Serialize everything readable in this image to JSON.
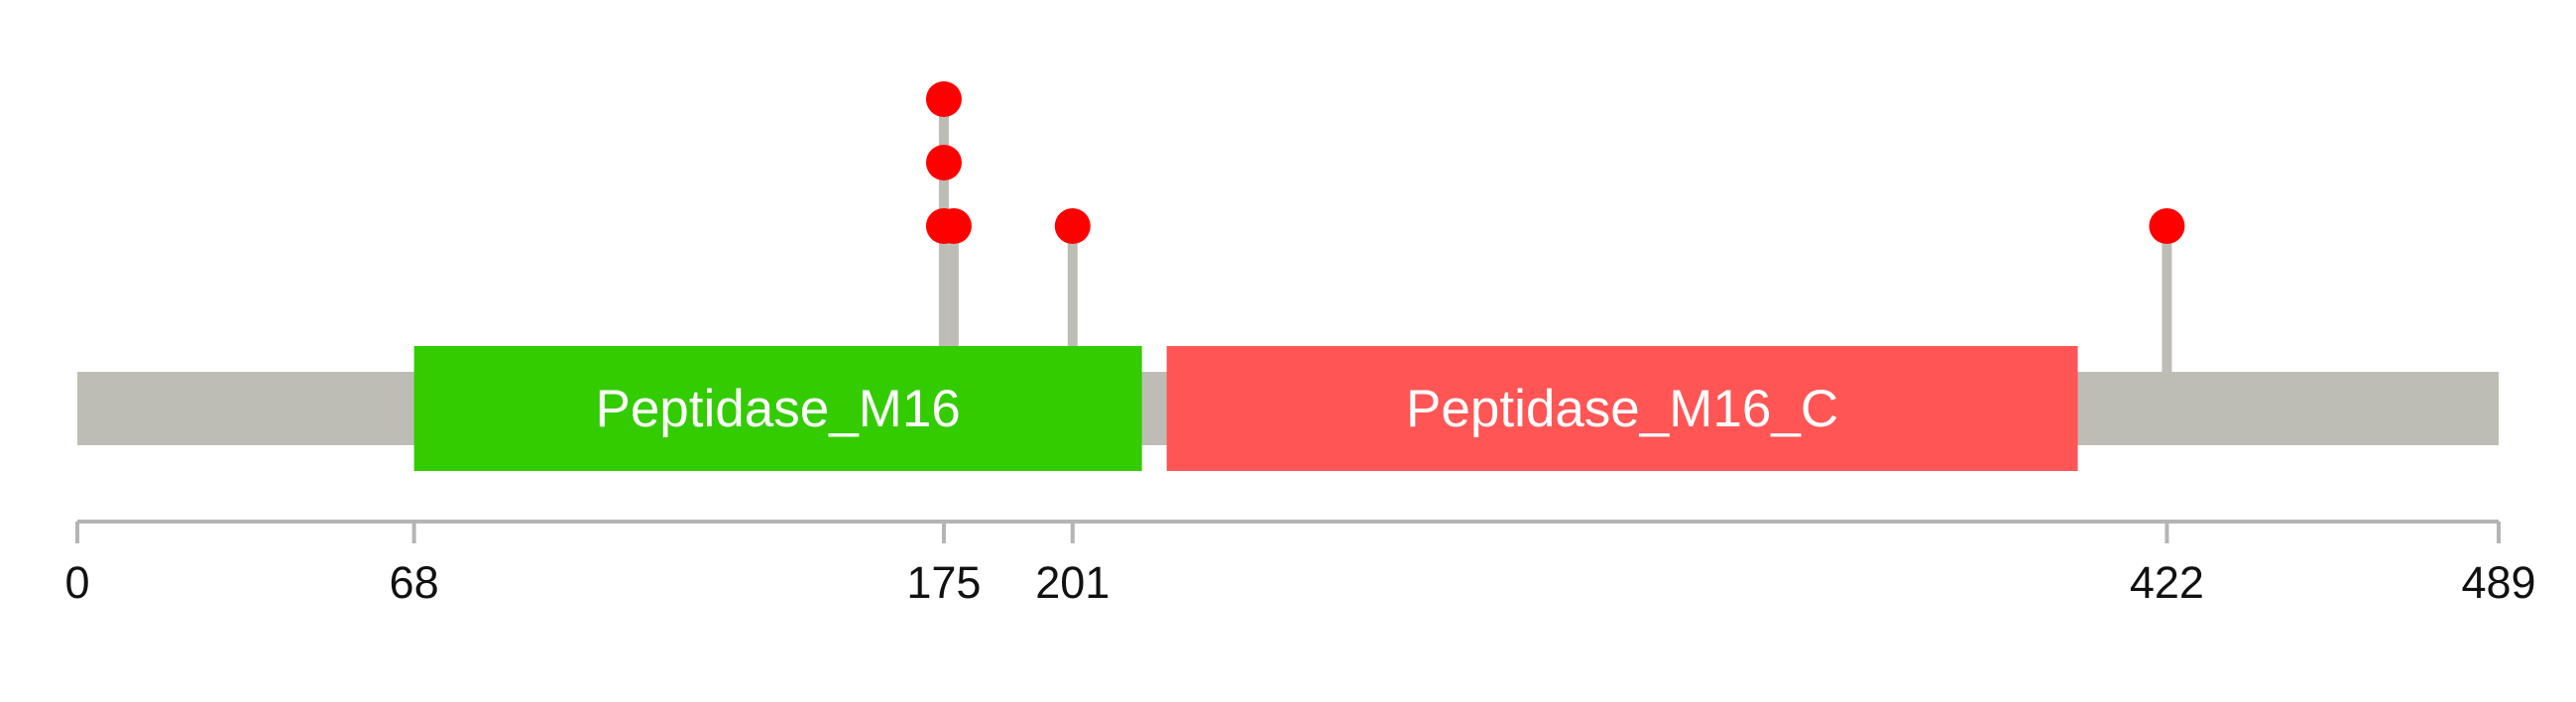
{
  "chart_data": {
    "type": "lollipop",
    "protein_length": 489,
    "axis": {
      "range": [
        0,
        489
      ],
      "ticks": [
        0,
        68,
        175,
        201,
        422,
        489
      ],
      "tick_labels": [
        "0",
        "68",
        "175",
        "201",
        "422",
        "489"
      ]
    },
    "domains": [
      {
        "name": "Peptidase_M16",
        "start": 68,
        "end": 215,
        "color": "#33cc00"
      },
      {
        "name": "Peptidase_M16_C",
        "start": 220,
        "end": 404,
        "color": "#ff5555"
      }
    ],
    "mutations": [
      {
        "position": 175,
        "count": 3
      },
      {
        "position": 177,
        "count": 1
      },
      {
        "position": 201,
        "count": 1
      },
      {
        "position": 422,
        "count": 1
      }
    ]
  },
  "colors": {
    "backbone": "#bdbdb5",
    "stem": "#bdbdb5",
    "marker": "#ff0000",
    "axis": "#b4b4b4",
    "tick_text": "#111111",
    "domain_text": "#ffffff"
  }
}
